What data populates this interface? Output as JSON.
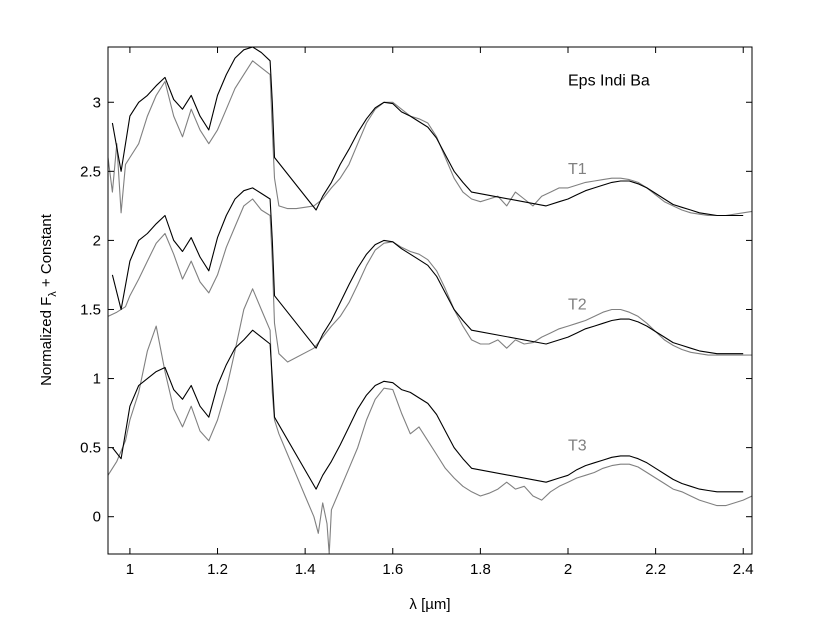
{
  "chart_data": {
    "type": "line",
    "title": "",
    "xlabel": "λ [µm]",
    "ylabel_main": "Normalized F",
    "ylabel_sub": "λ",
    "ylabel_tail": " + Constant",
    "xlim": [
      0.95,
      2.42
    ],
    "ylim": [
      -0.27,
      3.4
    ],
    "grid": false,
    "x_ticks": [
      1.0,
      1.2,
      1.4,
      1.6,
      1.8,
      2.0,
      2.2,
      2.4
    ],
    "x_tick_labels": [
      "1",
      "1.2",
      "1.4",
      "1.6",
      "1.8",
      "2",
      "2.2",
      "2.4"
    ],
    "y_ticks": [
      0,
      0.5,
      1,
      1.5,
      2,
      2.5,
      3
    ],
    "y_tick_labels": [
      "0",
      "0.5",
      "1",
      "1.5",
      "2",
      "2.5",
      "3"
    ],
    "annotations": [
      {
        "id": "target-label",
        "text": "Eps Indi Ba",
        "x": 2.0,
        "y": 3.12,
        "color": "#000000"
      },
      {
        "id": "t1-label",
        "text": "T1",
        "x": 2.0,
        "y": 2.48,
        "color": "#808080"
      },
      {
        "id": "t2-label",
        "text": "T2",
        "x": 2.0,
        "y": 1.5,
        "color": "#808080"
      },
      {
        "id": "t3-label",
        "text": "T3",
        "x": 2.0,
        "y": 0.48,
        "color": "#808080"
      }
    ],
    "colors": {
      "observed": "#000000",
      "template": "#808080"
    },
    "series": [
      {
        "group": "T1",
        "role": "template",
        "offset": 2.0,
        "x": [
          0.95,
          0.96,
          0.97,
          0.98,
          0.99,
          1.0,
          1.02,
          1.04,
          1.06,
          1.08,
          1.1,
          1.12,
          1.14,
          1.16,
          1.18,
          1.2,
          1.22,
          1.24,
          1.26,
          1.28,
          1.3,
          1.32,
          1.325,
          1.33,
          1.34,
          1.36,
          1.38,
          1.42,
          1.44,
          1.46,
          1.48,
          1.5,
          1.52,
          1.54,
          1.56,
          1.58,
          1.6,
          1.62,
          1.64,
          1.66,
          1.68,
          1.7,
          1.72,
          1.74,
          1.76,
          1.78,
          1.8,
          1.82,
          1.84,
          1.86,
          1.88,
          1.9,
          1.92,
          1.94,
          1.96,
          1.98,
          2.0,
          2.02,
          2.04,
          2.06,
          2.08,
          2.1,
          2.12,
          2.14,
          2.16,
          2.18,
          2.2,
          2.22,
          2.24,
          2.26,
          2.28,
          2.3,
          2.32,
          2.34,
          2.36,
          2.38,
          2.4,
          2.42
        ],
        "y": [
          0.6,
          0.35,
          0.7,
          0.2,
          0.55,
          0.6,
          0.7,
          0.9,
          1.05,
          1.15,
          0.9,
          0.75,
          0.95,
          0.8,
          0.7,
          0.8,
          0.95,
          1.1,
          1.2,
          1.3,
          1.25,
          1.2,
          0.8,
          0.45,
          0.25,
          0.23,
          0.23,
          0.25,
          0.3,
          0.38,
          0.45,
          0.55,
          0.7,
          0.85,
          0.95,
          1.0,
          1.0,
          0.95,
          0.9,
          0.88,
          0.85,
          0.75,
          0.6,
          0.45,
          0.35,
          0.3,
          0.28,
          0.3,
          0.32,
          0.25,
          0.35,
          0.3,
          0.25,
          0.32,
          0.35,
          0.38,
          0.38,
          0.4,
          0.42,
          0.43,
          0.44,
          0.45,
          0.45,
          0.44,
          0.42,
          0.38,
          0.33,
          0.28,
          0.25,
          0.22,
          0.2,
          0.19,
          0.18,
          0.18,
          0.18,
          0.19,
          0.2,
          0.21
        ]
      },
      {
        "group": "T1",
        "role": "observed",
        "offset": 2.0,
        "x": [
          0.96,
          0.98,
          1.0,
          1.02,
          1.04,
          1.06,
          1.08,
          1.1,
          1.12,
          1.14,
          1.16,
          1.18,
          1.2,
          1.22,
          1.24,
          1.26,
          1.28,
          1.3,
          1.32,
          1.325,
          1.33,
          1.425,
          1.44,
          1.46,
          1.48,
          1.5,
          1.52,
          1.54,
          1.56,
          1.58,
          1.6,
          1.62,
          1.64,
          1.66,
          1.68,
          1.7,
          1.72,
          1.74,
          1.76,
          1.78,
          1.95,
          1.98,
          2.0,
          2.02,
          2.04,
          2.06,
          2.08,
          2.1,
          2.12,
          2.14,
          2.16,
          2.18,
          2.2,
          2.22,
          2.24,
          2.26,
          2.28,
          2.3,
          2.32,
          2.34,
          2.36,
          2.38,
          2.4
        ],
        "y": [
          0.85,
          0.5,
          0.9,
          1.0,
          1.05,
          1.12,
          1.18,
          1.02,
          0.95,
          1.05,
          0.9,
          0.8,
          1.05,
          1.2,
          1.32,
          1.38,
          1.4,
          1.36,
          1.3,
          1.0,
          0.6,
          0.22,
          0.32,
          0.42,
          0.55,
          0.66,
          0.78,
          0.88,
          0.96,
          1.0,
          0.99,
          0.93,
          0.9,
          0.86,
          0.82,
          0.74,
          0.62,
          0.5,
          0.42,
          0.35,
          0.25,
          0.28,
          0.3,
          0.33,
          0.36,
          0.38,
          0.4,
          0.42,
          0.43,
          0.43,
          0.41,
          0.38,
          0.34,
          0.3,
          0.26,
          0.24,
          0.22,
          0.2,
          0.19,
          0.18,
          0.18,
          0.18,
          0.18
        ]
      },
      {
        "group": "T2",
        "role": "template",
        "offset": 1.0,
        "x": [
          0.95,
          0.97,
          0.99,
          1.0,
          1.02,
          1.04,
          1.06,
          1.08,
          1.1,
          1.12,
          1.14,
          1.16,
          1.18,
          1.2,
          1.22,
          1.24,
          1.26,
          1.28,
          1.3,
          1.32,
          1.325,
          1.33,
          1.34,
          1.36,
          1.42,
          1.44,
          1.46,
          1.48,
          1.5,
          1.52,
          1.54,
          1.56,
          1.58,
          1.6,
          1.62,
          1.64,
          1.66,
          1.68,
          1.7,
          1.72,
          1.74,
          1.76,
          1.78,
          1.8,
          1.82,
          1.84,
          1.86,
          1.88,
          1.9,
          1.92,
          1.94,
          1.96,
          1.98,
          2.0,
          2.02,
          2.04,
          2.06,
          2.08,
          2.1,
          2.12,
          2.14,
          2.16,
          2.18,
          2.2,
          2.22,
          2.24,
          2.26,
          2.28,
          2.3,
          2.32,
          2.34,
          2.36,
          2.38,
          2.4,
          2.42
        ],
        "y": [
          0.45,
          0.48,
          0.52,
          0.6,
          0.72,
          0.85,
          0.98,
          1.05,
          0.9,
          0.72,
          0.85,
          0.7,
          0.62,
          0.75,
          0.95,
          1.1,
          1.25,
          1.3,
          1.22,
          1.18,
          0.85,
          0.4,
          0.18,
          0.12,
          0.22,
          0.3,
          0.38,
          0.45,
          0.55,
          0.68,
          0.82,
          0.93,
          0.98,
          0.99,
          0.95,
          0.92,
          0.9,
          0.86,
          0.78,
          0.65,
          0.5,
          0.38,
          0.28,
          0.25,
          0.25,
          0.28,
          0.22,
          0.28,
          0.25,
          0.26,
          0.3,
          0.33,
          0.36,
          0.38,
          0.4,
          0.42,
          0.45,
          0.48,
          0.5,
          0.5,
          0.48,
          0.45,
          0.4,
          0.34,
          0.28,
          0.24,
          0.21,
          0.19,
          0.18,
          0.17,
          0.17,
          0.17,
          0.17,
          0.17,
          0.17
        ]
      },
      {
        "group": "T2",
        "role": "observed",
        "offset": 1.0,
        "x": [
          0.96,
          0.98,
          1.0,
          1.02,
          1.04,
          1.06,
          1.08,
          1.1,
          1.12,
          1.14,
          1.16,
          1.18,
          1.2,
          1.22,
          1.24,
          1.26,
          1.28,
          1.3,
          1.32,
          1.325,
          1.33,
          1.425,
          1.44,
          1.46,
          1.48,
          1.5,
          1.52,
          1.54,
          1.56,
          1.58,
          1.6,
          1.62,
          1.64,
          1.66,
          1.68,
          1.7,
          1.72,
          1.74,
          1.76,
          1.78,
          1.95,
          1.98,
          2.0,
          2.02,
          2.04,
          2.06,
          2.08,
          2.1,
          2.12,
          2.14,
          2.16,
          2.18,
          2.2,
          2.22,
          2.24,
          2.26,
          2.28,
          2.3,
          2.32,
          2.34,
          2.36,
          2.38,
          2.4
        ],
        "y": [
          0.75,
          0.5,
          0.85,
          1.0,
          1.05,
          1.12,
          1.18,
          1.0,
          0.92,
          1.02,
          0.88,
          0.78,
          1.02,
          1.18,
          1.3,
          1.36,
          1.38,
          1.34,
          1.3,
          1.0,
          0.6,
          0.22,
          0.32,
          0.42,
          0.55,
          0.68,
          0.8,
          0.9,
          0.97,
          1.0,
          0.99,
          0.94,
          0.9,
          0.86,
          0.82,
          0.74,
          0.62,
          0.5,
          0.42,
          0.35,
          0.25,
          0.28,
          0.3,
          0.33,
          0.36,
          0.38,
          0.4,
          0.42,
          0.43,
          0.43,
          0.41,
          0.38,
          0.34,
          0.3,
          0.26,
          0.24,
          0.22,
          0.2,
          0.19,
          0.18,
          0.18,
          0.18,
          0.18
        ]
      },
      {
        "group": "T3",
        "role": "template",
        "offset": 0.0,
        "x": [
          0.95,
          0.97,
          0.99,
          1.0,
          1.02,
          1.04,
          1.06,
          1.08,
          1.1,
          1.12,
          1.14,
          1.16,
          1.18,
          1.2,
          1.22,
          1.24,
          1.26,
          1.28,
          1.3,
          1.32,
          1.325,
          1.33,
          1.34,
          1.36,
          1.38,
          1.4,
          1.42,
          1.43,
          1.44,
          1.45,
          1.455,
          1.46,
          1.48,
          1.5,
          1.52,
          1.54,
          1.56,
          1.58,
          1.6,
          1.62,
          1.64,
          1.66,
          1.68,
          1.7,
          1.72,
          1.74,
          1.76,
          1.78,
          1.8,
          1.82,
          1.84,
          1.86,
          1.88,
          1.9,
          1.92,
          1.94,
          1.96,
          1.98,
          2.0,
          2.02,
          2.04,
          2.06,
          2.08,
          2.1,
          2.12,
          2.14,
          2.16,
          2.18,
          2.2,
          2.22,
          2.24,
          2.26,
          2.28,
          2.3,
          2.32,
          2.34,
          2.36,
          2.38,
          2.4,
          2.42
        ],
        "y": [
          0.3,
          0.4,
          0.55,
          0.7,
          0.9,
          1.2,
          1.38,
          1.05,
          0.78,
          0.65,
          0.8,
          0.62,
          0.55,
          0.7,
          0.92,
          1.2,
          1.5,
          1.65,
          1.5,
          1.35,
          0.9,
          0.7,
          0.6,
          0.45,
          0.3,
          0.15,
          0.0,
          -0.12,
          0.1,
          -0.05,
          -0.27,
          0.05,
          0.2,
          0.35,
          0.5,
          0.7,
          0.85,
          0.93,
          0.92,
          0.75,
          0.6,
          0.65,
          0.55,
          0.45,
          0.35,
          0.28,
          0.22,
          0.18,
          0.15,
          0.17,
          0.2,
          0.25,
          0.2,
          0.22,
          0.15,
          0.12,
          0.18,
          0.22,
          0.25,
          0.28,
          0.3,
          0.32,
          0.35,
          0.37,
          0.38,
          0.38,
          0.36,
          0.32,
          0.28,
          0.24,
          0.2,
          0.18,
          0.15,
          0.12,
          0.1,
          0.08,
          0.08,
          0.1,
          0.12,
          0.15
        ]
      },
      {
        "group": "T3",
        "role": "observed",
        "offset": 0.0,
        "x": [
          0.96,
          0.98,
          1.0,
          1.02,
          1.04,
          1.06,
          1.08,
          1.1,
          1.12,
          1.14,
          1.16,
          1.18,
          1.2,
          1.22,
          1.24,
          1.26,
          1.28,
          1.3,
          1.32,
          1.325,
          1.33,
          1.425,
          1.44,
          1.46,
          1.48,
          1.5,
          1.52,
          1.54,
          1.56,
          1.58,
          1.6,
          1.62,
          1.64,
          1.66,
          1.68,
          1.7,
          1.72,
          1.74,
          1.76,
          1.78,
          1.95,
          1.98,
          2.0,
          2.02,
          2.04,
          2.06,
          2.08,
          2.1,
          2.12,
          2.14,
          2.16,
          2.18,
          2.2,
          2.22,
          2.24,
          2.26,
          2.28,
          2.3,
          2.32,
          2.34,
          2.36,
          2.38,
          2.4
        ],
        "y": [
          0.5,
          0.42,
          0.8,
          0.95,
          1.0,
          1.05,
          1.08,
          0.92,
          0.85,
          0.95,
          0.8,
          0.72,
          0.95,
          1.1,
          1.22,
          1.28,
          1.35,
          1.3,
          1.25,
          1.0,
          0.72,
          0.2,
          0.3,
          0.4,
          0.52,
          0.65,
          0.78,
          0.88,
          0.95,
          0.98,
          0.97,
          0.92,
          0.9,
          0.86,
          0.82,
          0.74,
          0.62,
          0.5,
          0.42,
          0.35,
          0.25,
          0.28,
          0.3,
          0.34,
          0.37,
          0.39,
          0.41,
          0.43,
          0.44,
          0.44,
          0.42,
          0.39,
          0.35,
          0.31,
          0.27,
          0.24,
          0.22,
          0.2,
          0.19,
          0.18,
          0.18,
          0.18,
          0.18
        ]
      }
    ]
  }
}
